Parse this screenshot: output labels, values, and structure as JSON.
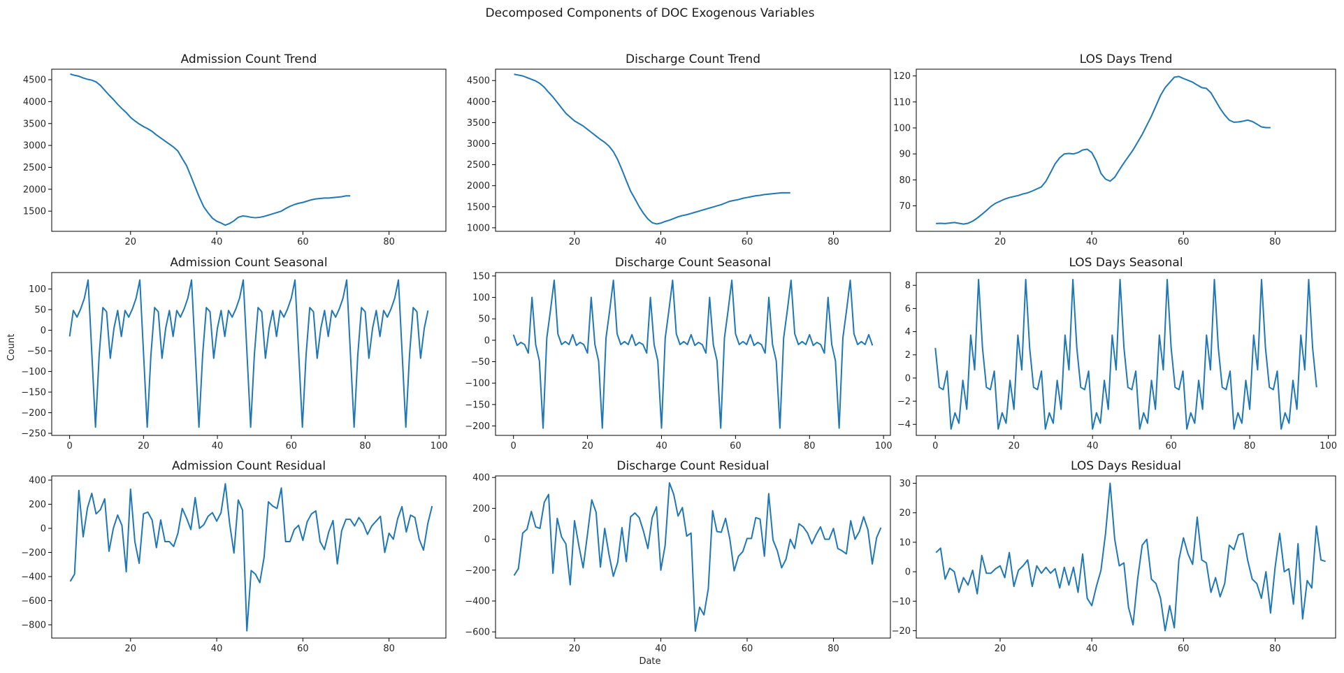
{
  "figure": {
    "title": "Decomposed Components of DOC Exogenous Variables",
    "xlabel": "Date",
    "ylabel": "Count"
  },
  "chart_data": [
    {
      "type": "line",
      "title": "Admission Count Trend",
      "color": "#1f77b4",
      "xlim": [
        1.7,
        93.2
      ],
      "ylim": [
        1040,
        4740
      ],
      "xticks": [
        20,
        40,
        60,
        80
      ],
      "yticks": [
        1500,
        2000,
        2500,
        3000,
        3500,
        4000,
        4500
      ],
      "x_start": 6,
      "values": [
        4630,
        4600,
        4580,
        4540,
        4510,
        4490,
        4450,
        4370,
        4260,
        4150,
        4050,
        3940,
        3840,
        3750,
        3640,
        3560,
        3490,
        3430,
        3380,
        3320,
        3240,
        3170,
        3100,
        3030,
        2960,
        2870,
        2700,
        2540,
        2300,
        2050,
        1810,
        1600,
        1460,
        1340,
        1270,
        1230,
        1180,
        1220,
        1280,
        1360,
        1390,
        1380,
        1360,
        1350,
        1360,
        1380,
        1410,
        1440,
        1470,
        1500,
        1560,
        1610,
        1650,
        1680,
        1700,
        1730,
        1760,
        1780,
        1790,
        1800,
        1800,
        1810,
        1820,
        1830,
        1850,
        1850
      ]
    },
    {
      "type": "line",
      "title": "Discharge Count Trend",
      "color": "#1f77b4",
      "xlim": [
        1.7,
        93.2
      ],
      "ylim": [
        915,
        4770
      ],
      "xticks": [
        20,
        40,
        60,
        80
      ],
      "yticks": [
        1000,
        1500,
        2000,
        2500,
        3000,
        3500,
        4000,
        4500
      ],
      "x_start": 6,
      "values": [
        4650,
        4630,
        4610,
        4570,
        4530,
        4490,
        4430,
        4340,
        4220,
        4110,
        3980,
        3850,
        3720,
        3630,
        3540,
        3480,
        3420,
        3340,
        3260,
        3180,
        3100,
        3030,
        2940,
        2810,
        2620,
        2380,
        2120,
        1870,
        1690,
        1500,
        1340,
        1210,
        1120,
        1090,
        1110,
        1150,
        1180,
        1220,
        1260,
        1290,
        1310,
        1340,
        1370,
        1400,
        1430,
        1460,
        1490,
        1520,
        1550,
        1590,
        1630,
        1650,
        1670,
        1700,
        1720,
        1740,
        1760,
        1770,
        1790,
        1800,
        1810,
        1820,
        1830,
        1830,
        1830
      ]
    },
    {
      "type": "line",
      "title": "LOS Days Trend",
      "color": "#1f77b4",
      "xlim": [
        1.7,
        93.2
      ],
      "ylim": [
        60.2,
        122.6
      ],
      "xticks": [
        20,
        40,
        60,
        80
      ],
      "yticks": [
        70,
        80,
        90,
        100,
        110,
        120
      ],
      "x_start": 6,
      "values": [
        63.2,
        63.3,
        63.2,
        63.4,
        63.6,
        63.3,
        63.0,
        63.3,
        64.1,
        65.3,
        66.7,
        68.2,
        69.8,
        71.0,
        71.8,
        72.6,
        73.2,
        73.6,
        74.0,
        74.6,
        75.0,
        75.7,
        76.5,
        77.3,
        79.5,
        82.8,
        86.2,
        88.5,
        90.0,
        90.2,
        90.0,
        90.5,
        91.5,
        91.8,
        90.5,
        87.2,
        82.5,
        80.3,
        79.5,
        81.0,
        83.8,
        86.5,
        89.0,
        91.5,
        94.5,
        97.5,
        101.0,
        104.5,
        108.5,
        112.5,
        115.5,
        117.5,
        119.5,
        119.8,
        119.0,
        118.3,
        117.6,
        116.5,
        115.5,
        115.2,
        113.5,
        110.5,
        107.5,
        105.0,
        103.0,
        102.2,
        102.3,
        102.6,
        103.0,
        102.5,
        101.5,
        100.4,
        100.1,
        100.1
      ]
    },
    {
      "type": "line",
      "title": "Admission Count Seasonal",
      "color": "#1f77b4",
      "xlim": [
        -4.85,
        101.85
      ],
      "ylim": [
        -255,
        140
      ],
      "xticks": [
        0,
        20,
        40,
        60,
        80,
        100
      ],
      "yticks": [
        -250,
        -200,
        -150,
        -100,
        -50,
        0,
        50,
        100
      ],
      "x_start": 0,
      "pattern": [
        -15,
        48,
        32,
        52,
        78,
        122,
        -55,
        -235,
        -60,
        55,
        45,
        -68,
        5,
        48
      ],
      "values_note": ""
    },
    {
      "type": "line",
      "title": "Discharge Count Seasonal",
      "color": "#1f77b4",
      "xlim": [
        -4.85,
        101.85
      ],
      "ylim": [
        -222,
        158
      ],
      "xticks": [
        0,
        20,
        40,
        60,
        80,
        100
      ],
      "yticks": [
        -200,
        -150,
        -100,
        -50,
        0,
        50,
        100,
        150
      ],
      "x_start": 0
    },
    {
      "type": "line",
      "title": "LOS Days Seasonal",
      "color": "#1f77b4",
      "xlim": [
        -4.85,
        101.85
      ],
      "ylim": [
        -4.95,
        9.1
      ],
      "xticks": [
        0,
        20,
        40,
        60,
        80,
        100
      ],
      "yticks": [
        -4,
        -2,
        0,
        2,
        4,
        6,
        8
      ],
      "x_start": 0
    },
    {
      "type": "line",
      "title": "Admission Count Residual",
      "color": "#1f77b4",
      "xlim": [
        1.7,
        93.2
      ],
      "ylim": [
        -910,
        435
      ],
      "xticks": [
        20,
        40,
        60,
        80
      ],
      "yticks": [
        -800,
        -600,
        -400,
        -200,
        0,
        200,
        400
      ],
      "x_start": 6,
      "values": [
        -440,
        -380,
        315,
        -70,
        170,
        290,
        120,
        155,
        245,
        -190,
        0,
        110,
        25,
        -360,
        325,
        -110,
        -290,
        120,
        135,
        70,
        -160,
        70,
        -110,
        -110,
        -150,
        -40,
        165,
        85,
        -10,
        255,
        0,
        30,
        100,
        130,
        60,
        130,
        370,
        40,
        -205,
        235,
        150,
        -850,
        -350,
        -380,
        -450,
        -240,
        220,
        185,
        165,
        335,
        -110,
        -110,
        -10,
        25,
        -100,
        55,
        120,
        145,
        -110,
        -175,
        -30,
        65,
        -295,
        -20,
        75,
        75,
        20,
        90,
        40,
        -50,
        20,
        60,
        100,
        -200,
        -40,
        -90,
        80,
        180,
        -30,
        110,
        90,
        -90,
        -180,
        40,
        185
      ]
    },
    {
      "type": "line",
      "title": "Discharge Count Residual",
      "color": "#1f77b4",
      "xlim": [
        1.7,
        93.2
      ],
      "ylim": [
        -640,
        410
      ],
      "xticks": [
        20,
        40,
        60,
        80
      ],
      "yticks": [
        -600,
        -400,
        -200,
        0,
        200,
        400
      ],
      "x_start": 6,
      "values": [
        -235,
        -190,
        40,
        65,
        180,
        80,
        70,
        240,
        290,
        -220,
        135,
        15,
        -30,
        -295,
        120,
        -40,
        -185,
        30,
        255,
        175,
        -180,
        70,
        -100,
        -240,
        -150,
        75,
        -145,
        145,
        170,
        140,
        50,
        -60,
        140,
        210,
        -200,
        -40,
        365,
        290,
        150,
        205,
        20,
        40,
        -595,
        -440,
        -490,
        -320,
        185,
        50,
        45,
        135,
        0,
        -205,
        -110,
        -80,
        5,
        5,
        140,
        130,
        -110,
        295,
        -5,
        -75,
        -185,
        -130,
        0,
        -60,
        100,
        80,
        40,
        -30,
        30,
        80,
        0,
        0,
        70,
        -60,
        -75,
        -95,
        120,
        0,
        50,
        145,
        60,
        -160,
        10,
        75
      ]
    },
    {
      "type": "line",
      "title": "LOS Days Residual",
      "color": "#1f77b4",
      "xlim": [
        1.7,
        93.2
      ],
      "ylim": [
        -22.5,
        32.5
      ],
      "xticks": [
        20,
        40,
        60,
        80
      ],
      "yticks": [
        -20,
        -10,
        0,
        10,
        20,
        30
      ],
      "x_start": 6,
      "values": [
        6.5,
        8,
        -2.5,
        1.2,
        0,
        -7,
        -2,
        -4.5,
        0.5,
        -7.5,
        5.5,
        -0.5,
        -0.5,
        1,
        2,
        -2,
        6.5,
        -5,
        0.5,
        2,
        4,
        -5,
        2,
        -0.5,
        1.5,
        -0.5,
        1,
        -5.5,
        1.5,
        -4.5,
        1.5,
        -7,
        6,
        -9,
        -11.5,
        -5,
        0.5,
        13,
        30,
        11,
        2,
        3,
        -12,
        -18,
        -2.5,
        9,
        11,
        -2.5,
        -4,
        -9,
        -20,
        -11.5,
        -19,
        4,
        11.5,
        6,
        2.5,
        18.5,
        4,
        3,
        -7,
        -2,
        -8.5,
        -4,
        9,
        7.5,
        12.5,
        13,
        4,
        -2.5,
        -4,
        -9,
        0,
        -14,
        1.5,
        13,
        0,
        1,
        -11,
        9.5,
        -16,
        -3,
        -5.5,
        15.5,
        4,
        3.5
      ]
    }
  ]
}
